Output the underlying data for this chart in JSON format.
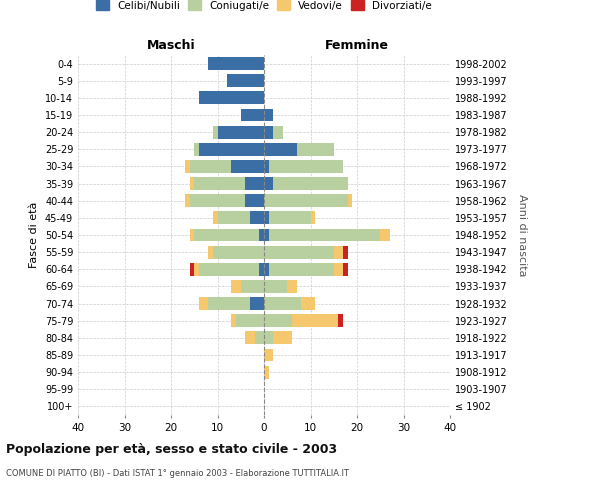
{
  "age_groups": [
    "100+",
    "95-99",
    "90-94",
    "85-89",
    "80-84",
    "75-79",
    "70-74",
    "65-69",
    "60-64",
    "55-59",
    "50-54",
    "45-49",
    "40-44",
    "35-39",
    "30-34",
    "25-29",
    "20-24",
    "15-19",
    "10-14",
    "5-9",
    "0-4"
  ],
  "birth_years": [
    "≤ 1902",
    "1903-1907",
    "1908-1912",
    "1913-1917",
    "1918-1922",
    "1923-1927",
    "1928-1932",
    "1933-1937",
    "1938-1942",
    "1943-1947",
    "1948-1952",
    "1953-1957",
    "1958-1962",
    "1963-1967",
    "1968-1972",
    "1973-1977",
    "1978-1982",
    "1983-1987",
    "1988-1992",
    "1993-1997",
    "1998-2002"
  ],
  "maschi": {
    "celibi": [
      0,
      0,
      0,
      0,
      0,
      0,
      3,
      0,
      1,
      0,
      1,
      3,
      4,
      4,
      7,
      14,
      10,
      5,
      14,
      8,
      12
    ],
    "coniugati": [
      0,
      0,
      0,
      0,
      2,
      6,
      9,
      5,
      13,
      11,
      14,
      7,
      12,
      11,
      9,
      1,
      1,
      0,
      0,
      0,
      0
    ],
    "vedovi": [
      0,
      0,
      0,
      0,
      2,
      1,
      2,
      2,
      1,
      1,
      1,
      1,
      1,
      1,
      1,
      0,
      0,
      0,
      0,
      0,
      0
    ],
    "divorziati": [
      0,
      0,
      0,
      0,
      0,
      0,
      0,
      0,
      1,
      0,
      0,
      0,
      0,
      0,
      0,
      0,
      0,
      0,
      0,
      0,
      0
    ]
  },
  "femmine": {
    "nubili": [
      0,
      0,
      0,
      0,
      0,
      0,
      0,
      0,
      1,
      0,
      1,
      1,
      0,
      2,
      1,
      7,
      2,
      2,
      0,
      0,
      0
    ],
    "coniugate": [
      0,
      0,
      0,
      0,
      2,
      6,
      8,
      5,
      14,
      15,
      24,
      9,
      18,
      16,
      16,
      8,
      2,
      0,
      0,
      0,
      0
    ],
    "vedove": [
      0,
      0,
      1,
      2,
      4,
      10,
      3,
      2,
      2,
      2,
      2,
      1,
      1,
      0,
      0,
      0,
      0,
      0,
      0,
      0,
      0
    ],
    "divorziate": [
      0,
      0,
      0,
      0,
      0,
      1,
      0,
      0,
      1,
      1,
      0,
      0,
      0,
      0,
      0,
      0,
      0,
      0,
      0,
      0,
      0
    ]
  },
  "color_celibi": "#3a6ea5",
  "color_coniugati": "#b8cfa0",
  "color_vedovi": "#f5c86e",
  "color_divorziati": "#cc2222",
  "title": "Popolazione per età, sesso e stato civile - 2003",
  "subtitle": "COMUNE DI PIATTO (BI) - Dati ISTAT 1° gennaio 2003 - Elaborazione TUTTITALIA.IT",
  "xlabel_left": "Maschi",
  "xlabel_right": "Femmine",
  "ylabel_left": "Fasce di età",
  "ylabel_right": "Anni di nascita",
  "xlim": 40
}
